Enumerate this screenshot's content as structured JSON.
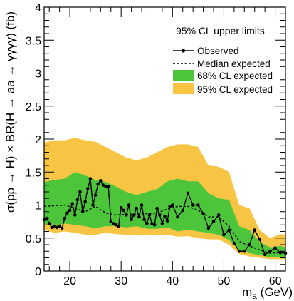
{
  "chart_data": {
    "type": "line",
    "title": "95% CL upper limits",
    "xlabel": "m_a (GeV)",
    "xlabel_main": "m",
    "xlabel_sub": "a",
    "xlabel_unit": " (GeV)",
    "ylabel": "σ(pp → H) × BR(H → aa → γγγγ) (fb)",
    "xlim": [
      15,
      62
    ],
    "ylim": [
      0,
      4
    ],
    "x_ticks": [
      20,
      30,
      40,
      50,
      60
    ],
    "y_ticks": [
      0,
      0.5,
      1,
      1.5,
      2,
      2.5,
      3,
      3.5,
      4
    ],
    "x_tick_labels": [
      "20",
      "30",
      "40",
      "50",
      "60"
    ],
    "y_tick_labels": [
      "0",
      "0.5",
      "1",
      "1.5",
      "2",
      "2.5",
      "3",
      "3.5",
      "4"
    ],
    "grid": false,
    "legend_position": "top-right",
    "legend": {
      "observed": "Observed",
      "median": "Median expected",
      "band68": "68% CL expected",
      "band95": "95% CL expected"
    },
    "colors": {
      "band68": "#4cc53b",
      "band95": "#f7c543",
      "observed": "#000000",
      "median": "#000000"
    },
    "observed": {
      "x": [
        15,
        15.5,
        16,
        16.5,
        17,
        17.5,
        18,
        18.5,
        19,
        19.5,
        20,
        20.5,
        21,
        21.5,
        22,
        22.5,
        23,
        23.5,
        24,
        24.5,
        25,
        25.5,
        26,
        26.5,
        27,
        27.5,
        28,
        28.5,
        29,
        29.5,
        30,
        30.5,
        31,
        31.5,
        32,
        32.5,
        33,
        33.5,
        34,
        34.5,
        35,
        35.5,
        36,
        36.5,
        37,
        37.5,
        38,
        38.5,
        39,
        39.5,
        40,
        41,
        42,
        43,
        44,
        45,
        46,
        47,
        48,
        49,
        50,
        51,
        52,
        53,
        54,
        55,
        56,
        57,
        58,
        59,
        60,
        61,
        62
      ],
      "y": [
        0.78,
        0.8,
        0.72,
        0.66,
        0.67,
        0.66,
        0.68,
        0.65,
        0.8,
        0.88,
        0.92,
        1.02,
        0.85,
        1.08,
        1.2,
        0.9,
        1.05,
        1.25,
        1.4,
        1.0,
        1.15,
        1.32,
        1.37,
        1.3,
        1.28,
        1.28,
        0.75,
        0.72,
        0.7,
        0.68,
        0.96,
        0.92,
        0.85,
        1.0,
        0.78,
        0.85,
        0.95,
        0.82,
        1.0,
        0.78,
        0.72,
        0.85,
        0.72,
        0.7,
        0.95,
        0.85,
        0.72,
        0.83,
        0.76,
        0.98,
        1.0,
        0.82,
        0.92,
        1.18,
        1.0,
        1.0,
        0.87,
        0.65,
        0.75,
        0.85,
        0.55,
        0.62,
        0.42,
        0.3,
        0.3,
        0.4,
        0.62,
        0.48,
        0.25,
        0.3,
        0.35,
        0.28,
        0.27
      ]
    },
    "expected_median": {
      "x": [
        15,
        17,
        19,
        21,
        23,
        25,
        27,
        29,
        31,
        33,
        35,
        37,
        39,
        41,
        43,
        45,
        47,
        49,
        51,
        53,
        55,
        57,
        59,
        61,
        62
      ],
      "y": [
        0.98,
        0.99,
        1.0,
        0.95,
        0.9,
        0.98,
        0.88,
        0.85,
        0.86,
        0.86,
        0.87,
        0.88,
        0.94,
        0.98,
        0.98,
        0.92,
        0.82,
        0.82,
        0.68,
        0.45,
        0.38,
        0.32,
        0.27,
        0.28,
        0.28
      ]
    },
    "band68": {
      "x": [
        15,
        17,
        19,
        21,
        23,
        25,
        27,
        29,
        31,
        33,
        35,
        37,
        39,
        41,
        43,
        45,
        47,
        49,
        51,
        53,
        55,
        57,
        59,
        61,
        62
      ],
      "lower": [
        0.72,
        0.68,
        0.72,
        0.7,
        0.68,
        0.65,
        0.68,
        0.68,
        0.66,
        0.68,
        0.64,
        0.64,
        0.66,
        0.6,
        0.63,
        0.6,
        0.58,
        0.55,
        0.47,
        0.32,
        0.27,
        0.24,
        0.21,
        0.21,
        0.21
      ],
      "upper": [
        1.35,
        1.38,
        1.4,
        1.5,
        1.45,
        1.38,
        1.35,
        1.28,
        1.2,
        1.15,
        1.2,
        1.24,
        1.36,
        1.4,
        1.36,
        1.36,
        1.18,
        1.1,
        1.08,
        0.68,
        0.62,
        0.44,
        0.36,
        0.38,
        0.36
      ]
    },
    "band95": {
      "x": [
        15,
        17,
        19,
        21,
        23,
        25,
        27,
        29,
        31,
        33,
        35,
        37,
        39,
        41,
        43,
        45,
        47,
        49,
        51,
        53,
        55,
        57,
        59,
        61,
        62
      ],
      "lower": [
        0.62,
        0.58,
        0.6,
        0.58,
        0.55,
        0.55,
        0.58,
        0.56,
        0.55,
        0.55,
        0.54,
        0.55,
        0.55,
        0.52,
        0.53,
        0.5,
        0.48,
        0.48,
        0.4,
        0.26,
        0.22,
        0.2,
        0.18,
        0.18,
        0.18
      ],
      "upper": [
        1.95,
        1.98,
        1.98,
        2.02,
        1.98,
        1.96,
        1.88,
        1.8,
        1.72,
        1.68,
        1.72,
        1.8,
        1.88,
        1.92,
        1.92,
        1.88,
        1.6,
        1.58,
        1.5,
        1.0,
        0.95,
        0.62,
        0.5,
        0.56,
        0.55
      ]
    }
  }
}
